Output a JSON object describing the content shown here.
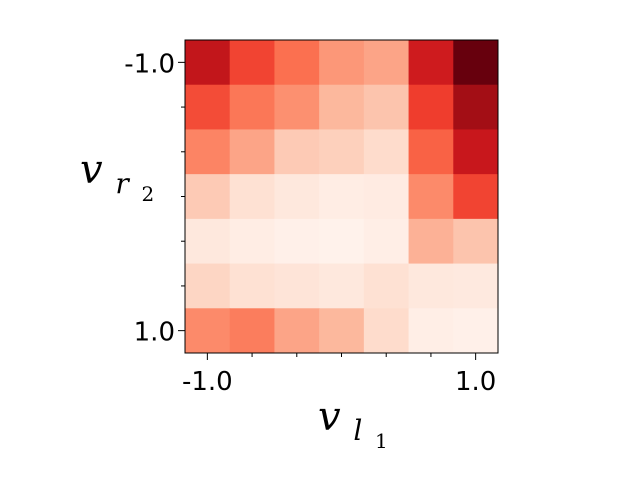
{
  "chart_data": {
    "type": "heatmap",
    "colormap": "Reds",
    "xlabel": "v",
    "xlabel_subscript": "l",
    "xlabel_subsubscript": "1",
    "ylabel": "v",
    "ylabel_subscript": "r",
    "ylabel_subsubscript": "2",
    "x_tick_labels": [
      "-1.0",
      "1.0"
    ],
    "y_tick_labels": [
      "-1.0",
      "1.0"
    ],
    "x_range": [
      -1.0,
      1.0
    ],
    "y_range": [
      -1.0,
      1.0
    ],
    "rows": 7,
    "cols": 7,
    "values": [
      [
        0.78,
        0.6,
        0.48,
        0.36,
        0.32,
        0.74,
        1.0
      ],
      [
        0.58,
        0.46,
        0.38,
        0.26,
        0.22,
        0.62,
        0.88
      ],
      [
        0.42,
        0.32,
        0.2,
        0.18,
        0.14,
        0.52,
        0.76
      ],
      [
        0.2,
        0.12,
        0.08,
        0.05,
        0.06,
        0.4,
        0.6
      ],
      [
        0.08,
        0.05,
        0.03,
        0.02,
        0.04,
        0.28,
        0.22
      ],
      [
        0.16,
        0.12,
        0.1,
        0.08,
        0.12,
        0.08,
        0.07
      ],
      [
        0.4,
        0.44,
        0.32,
        0.26,
        0.14,
        0.04,
        0.03
      ]
    ]
  }
}
